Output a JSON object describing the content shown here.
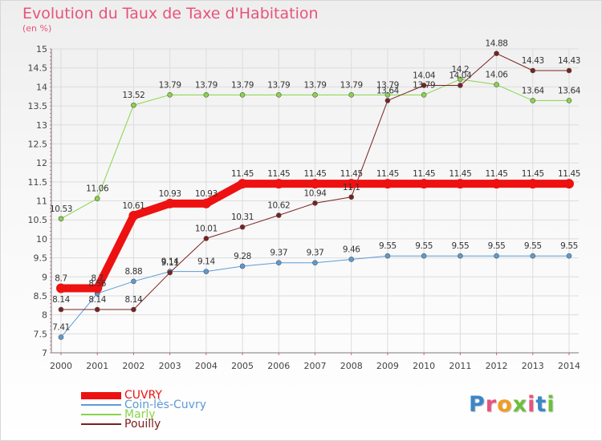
{
  "title": "Evolution du Taux de Taxe d'Habitation",
  "subtitle": "(en %)",
  "colors": {
    "title": "#e8537a",
    "axis_text": "#444444",
    "grid": "#dcdcdc",
    "axis_marks": "#e8537a"
  },
  "logo": {
    "text": "Proxiti",
    "letter_colors": [
      "#3a86c8",
      "#e8537a",
      "#f29c1f",
      "#6bbf3a",
      "#e8537a",
      "#3a86c8",
      "#6bbf3a"
    ]
  },
  "chart_data": {
    "type": "line",
    "title": "Evolution du Taux de Taxe d'Habitation",
    "ylabel": "(en %)",
    "xlabel": "",
    "x": [
      "2000",
      "2001",
      "2002",
      "2003",
      "2004",
      "2005",
      "2006",
      "2007",
      "2008",
      "2009",
      "2010",
      "2011",
      "2012",
      "2013",
      "2014"
    ],
    "ylim": [
      7,
      15
    ],
    "yticks": [
      "7",
      "7.5",
      "8",
      "8.5",
      "9",
      "9.5",
      "10",
      "10.5",
      "11",
      "11.5",
      "12",
      "12.5",
      "13",
      "13.5",
      "14",
      "14.5",
      "15"
    ],
    "grid": true,
    "legend_position": "bottom-left",
    "series": [
      {
        "name": "CUVRY",
        "color": "#ee1111",
        "width": 10,
        "values": [
          8.7,
          8.7,
          10.61,
          10.93,
          10.93,
          11.45,
          11.45,
          11.45,
          11.45,
          11.45,
          11.45,
          11.45,
          11.45,
          11.45,
          11.45
        ],
        "labels": [
          "8.7",
          "8.7",
          "10.61",
          "10.93",
          "10.93",
          "11.45",
          "11.45",
          "11.45",
          "11.45",
          "11.45",
          "11.45",
          "11.45",
          "11.45",
          "11.45",
          "11.45"
        ]
      },
      {
        "name": "Coin-lès-Cuvry",
        "color": "#5b9bd5",
        "width": 1,
        "values": [
          7.41,
          8.56,
          8.88,
          9.14,
          9.14,
          9.28,
          9.37,
          9.37,
          9.46,
          9.55,
          9.55,
          9.55,
          9.55,
          9.55,
          9.55
        ],
        "labels": [
          "7.41",
          "8.56",
          "8.88",
          "9.14",
          "9.14",
          "9.28",
          "9.37",
          "9.37",
          "9.46",
          "9.55",
          "9.55",
          "9.55",
          "9.55",
          "9.55",
          "9.55"
        ]
      },
      {
        "name": "Marly",
        "color": "#88d448",
        "width": 1,
        "values": [
          10.53,
          11.06,
          13.52,
          13.79,
          13.79,
          13.79,
          13.79,
          13.79,
          13.79,
          13.79,
          13.79,
          14.2,
          14.06,
          13.64,
          13.64
        ],
        "labels": [
          "10.53",
          "11.06",
          "13.52",
          "13.79",
          "13.79",
          "13.79",
          "13.79",
          "13.79",
          "13.79",
          "13.79",
          "13.79",
          "14.2",
          "14.06",
          "13.64",
          "13.64"
        ]
      },
      {
        "name": "Pouilly",
        "color": "#7a2020",
        "width": 1,
        "values": [
          8.14,
          8.14,
          8.14,
          9.11,
          10.01,
          10.31,
          10.62,
          10.94,
          11.1,
          13.64,
          14.04,
          14.04,
          14.88,
          14.43,
          14.43
        ],
        "labels": [
          "8.14",
          "8.14",
          "8.14",
          "9.11",
          "10.01",
          "10.31",
          "10.62",
          "10.94",
          "11.1",
          "13.64",
          "14.04",
          "14.04",
          "14.88",
          "14.43",
          "14.43"
        ]
      }
    ]
  }
}
